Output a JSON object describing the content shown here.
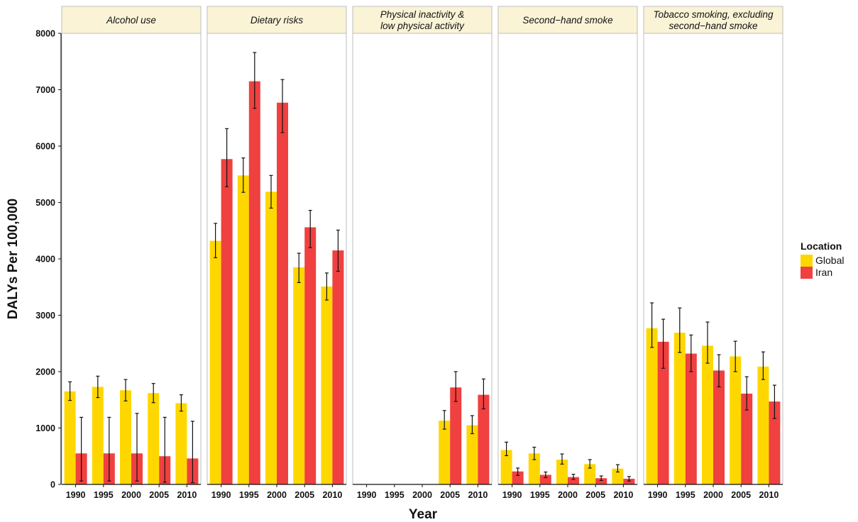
{
  "chart_data": {
    "type": "bar",
    "facets": [
      "Alcohol use",
      "Dietary risks",
      "Physical inactivity & low physical activity",
      "Second-hand smoke",
      "Tobacco smoking, excluding second-hand smoke"
    ],
    "facet_label_lines": [
      [
        "Alcohol use"
      ],
      [
        "Dietary risks"
      ],
      [
        "Physical inactivity &",
        "low physical activity"
      ],
      [
        "Second−hand smoke"
      ],
      [
        "Tobacco smoking, excluding",
        "second−hand smoke"
      ]
    ],
    "categories": [
      "1990",
      "1995",
      "2000",
      "2005",
      "2010"
    ],
    "xlabel": "Year",
    "ylabel": "DALYs Per 100,000",
    "ylim": [
      0,
      8000
    ],
    "yticks": [
      "0",
      "1000",
      "2000",
      "3000",
      "4000",
      "5000",
      "6000",
      "7000",
      "8000"
    ],
    "legend": {
      "title": "Location",
      "placement": "right"
    },
    "series": [
      {
        "name": "Global",
        "color": "#FFD700",
        "values": [
          [
            1650,
            1730,
            1670,
            1620,
            1440
          ],
          [
            4320,
            5480,
            5190,
            3850,
            3510
          ],
          [
            null,
            null,
            null,
            1130,
            1050
          ],
          [
            610,
            550,
            440,
            360,
            280
          ],
          [
            2770,
            2690,
            2460,
            2270,
            2090
          ]
        ],
        "lower": [
          [
            1490,
            1540,
            1480,
            1450,
            1300
          ],
          [
            4020,
            5180,
            4900,
            3580,
            3270
          ],
          [
            null,
            null,
            null,
            980,
            900
          ],
          [
            510,
            440,
            360,
            290,
            220
          ],
          [
            2430,
            2340,
            2150,
            2000,
            1860
          ]
        ],
        "upper": [
          [
            1820,
            1920,
            1860,
            1790,
            1590
          ],
          [
            4630,
            5790,
            5480,
            4100,
            3750
          ],
          [
            null,
            null,
            null,
            1310,
            1220
          ],
          [
            750,
            660,
            540,
            440,
            350
          ],
          [
            3220,
            3130,
            2880,
            2540,
            2350
          ]
        ]
      },
      {
        "name": "Iran",
        "color": "#F04040",
        "values": [
          [
            550,
            550,
            550,
            500,
            460
          ],
          [
            5770,
            7150,
            6770,
            4560,
            4150
          ],
          [
            null,
            null,
            null,
            1720,
            1590
          ],
          [
            230,
            170,
            130,
            110,
            100
          ],
          [
            2530,
            2320,
            2020,
            1610,
            1470
          ]
        ],
        "lower": [
          [
            60,
            60,
            60,
            40,
            30
          ],
          [
            5280,
            6670,
            6240,
            4200,
            3780
          ],
          [
            null,
            null,
            null,
            1470,
            1340
          ],
          [
            160,
            120,
            90,
            70,
            60
          ],
          [
            2060,
            2000,
            1730,
            1320,
            1170
          ]
        ],
        "upper": [
          [
            1190,
            1190,
            1260,
            1190,
            1120
          ],
          [
            6310,
            7660,
            7180,
            4860,
            4510
          ],
          [
            null,
            null,
            null,
            2000,
            1870
          ],
          [
            290,
            220,
            180,
            150,
            140
          ],
          [
            2930,
            2650,
            2300,
            1910,
            1760
          ]
        ]
      }
    ]
  }
}
